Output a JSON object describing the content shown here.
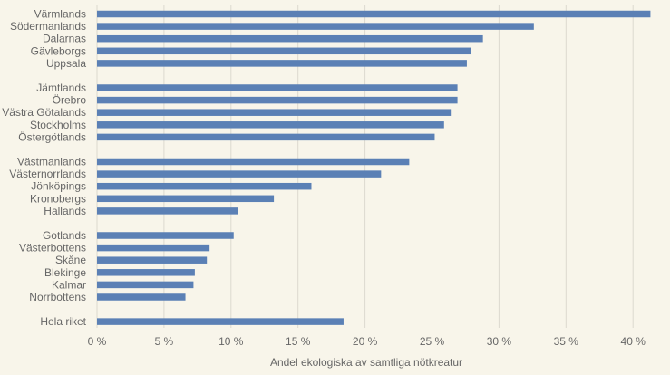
{
  "chart_data": {
    "type": "bar",
    "orientation": "horizontal",
    "title": "",
    "xlabel": "Andel ekologiska av samtliga nötkreatur",
    "ylabel": "",
    "xlim": [
      0,
      42
    ],
    "grid": true,
    "bar_color": "#5b80b5",
    "background": "#f8f5ea",
    "categories": [
      "Värmlands",
      "Södermanlands",
      "Dalarnas",
      "Gävleborgs",
      "Uppsala",
      "Jämtlands",
      "Örebro",
      "Västra Götalands",
      "Stockholms",
      "Östergötlands",
      "Västmanlands",
      "Västernorrlands",
      "Jönköpings",
      "Kronobergs",
      "Hallands",
      "Gotlands",
      "Västerbottens",
      "Skåne",
      "Blekinge",
      "Kalmar",
      "Norrbottens",
      "Hela riket"
    ],
    "groups": [
      0,
      0,
      0,
      0,
      0,
      1,
      1,
      1,
      1,
      1,
      2,
      2,
      2,
      2,
      2,
      3,
      3,
      3,
      3,
      3,
      3,
      4
    ],
    "values": [
      41.3,
      32.6,
      28.8,
      27.9,
      27.6,
      26.9,
      26.9,
      26.4,
      25.9,
      25.2,
      23.3,
      21.2,
      16.0,
      13.2,
      10.5,
      10.2,
      8.4,
      8.2,
      7.3,
      7.2,
      6.6,
      18.4
    ],
    "xticks": [
      0,
      5,
      10,
      15,
      20,
      25,
      30,
      35,
      40
    ],
    "xtick_labels": [
      "0 %",
      "5 %",
      "10 %",
      "15 %",
      "20 %",
      "25 %",
      "30 %",
      "35 %",
      "40 %"
    ]
  }
}
